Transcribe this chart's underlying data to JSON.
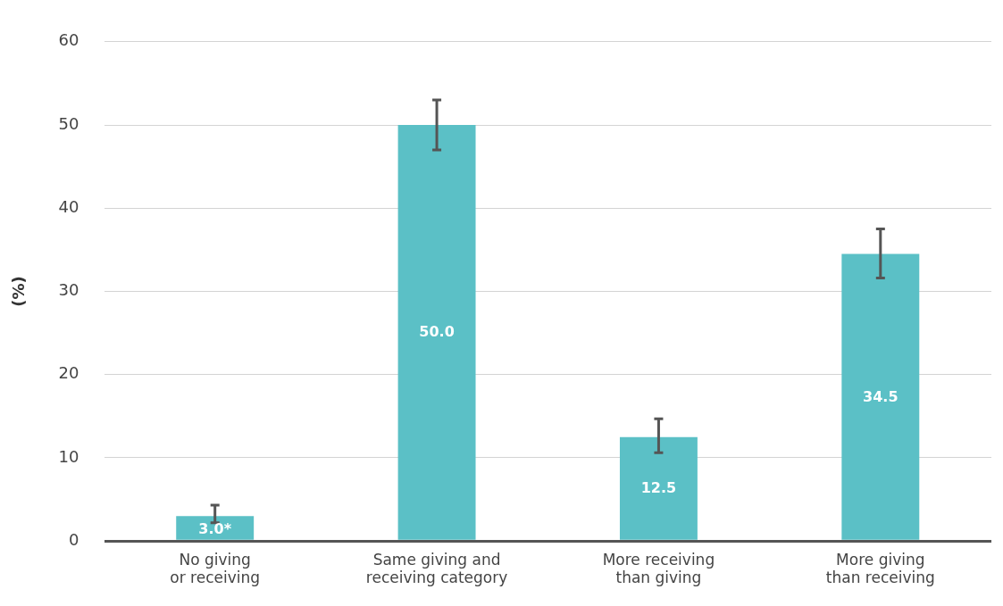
{
  "chart_data": {
    "type": "bar",
    "ylabel": "(%)",
    "categories": [
      "No giving or receiving",
      "Same giving and receiving category",
      "More receiving than giving",
      "More giving than receiving"
    ],
    "values": [
      3.0,
      50.0,
      12.5,
      34.5
    ],
    "value_labels": [
      "3.0*",
      "50.0",
      "12.5",
      "34.5"
    ],
    "errors": [
      [
        2.2,
        4.3
      ],
      [
        47.0,
        53.0
      ],
      [
        10.6,
        14.7
      ],
      [
        31.6,
        37.5
      ]
    ],
    "color": "#5bc0c6",
    "ylim": [
      0,
      60
    ],
    "yticks": [
      0,
      10,
      20,
      30,
      40,
      50,
      60
    ],
    "grid": "y",
    "legend": false
  }
}
